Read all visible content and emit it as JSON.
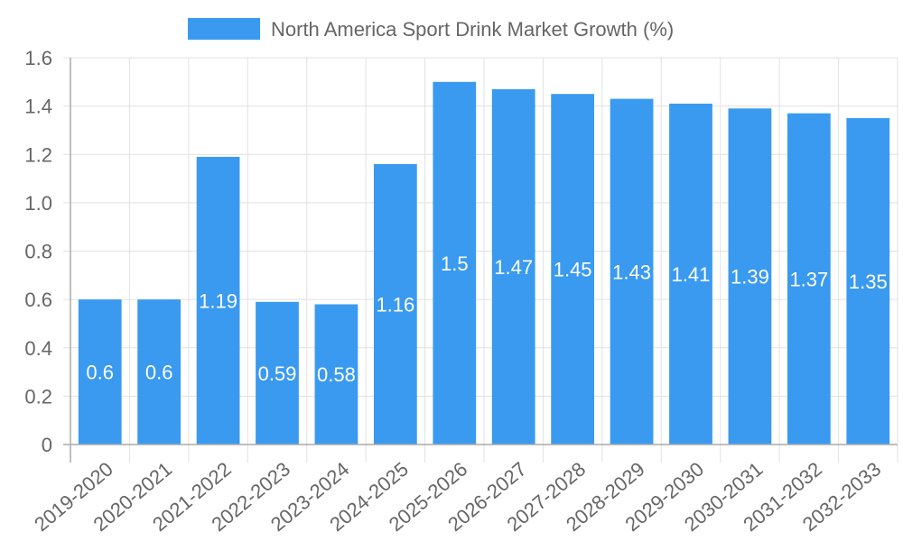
{
  "chart_data": {
    "type": "bar",
    "title": "",
    "xlabel": "",
    "ylabel": "",
    "ylim": [
      0,
      1.6
    ],
    "yticks": [
      0,
      0.2,
      0.4,
      0.6,
      0.8,
      1.0,
      1.2,
      1.4,
      1.6
    ],
    "ytick_labels": [
      "0",
      "0.2",
      "0.4",
      "0.6",
      "0.8",
      "1.0",
      "1.2",
      "1.4",
      "1.6"
    ],
    "grid": true,
    "legend_position": "top",
    "categories": [
      "2019-2020",
      "2020-2021",
      "2021-2022",
      "2022-2023",
      "2023-2024",
      "2024-2025",
      "2025-2026",
      "2026-2027",
      "2027-2028",
      "2028-2029",
      "2029-2030",
      "2030-2031",
      "2031-2032",
      "2032-2033"
    ],
    "series": [
      {
        "name": "North America Sport Drink Market Growth (%)",
        "color": "#3a9af0",
        "values": [
          0.6,
          0.6,
          1.19,
          0.59,
          0.58,
          1.16,
          1.5,
          1.47,
          1.45,
          1.43,
          1.41,
          1.39,
          1.37,
          1.35
        ],
        "data_labels": [
          "0.6",
          "0.6",
          "1.19",
          "0.59",
          "0.58",
          "1.16",
          "1.5",
          "1.47",
          "1.45",
          "1.43",
          "1.41",
          "1.39",
          "1.37",
          "1.35"
        ]
      }
    ]
  },
  "legend": {
    "label": "North America Sport Drink Market Growth (%)",
    "swatch_color": "#3a9af0"
  },
  "colors": {
    "bar": "#3a9af0",
    "grid": "#e1e1e1",
    "axis": "#aaaaaa",
    "text": "#666666",
    "bar_label": "#ffffff"
  }
}
